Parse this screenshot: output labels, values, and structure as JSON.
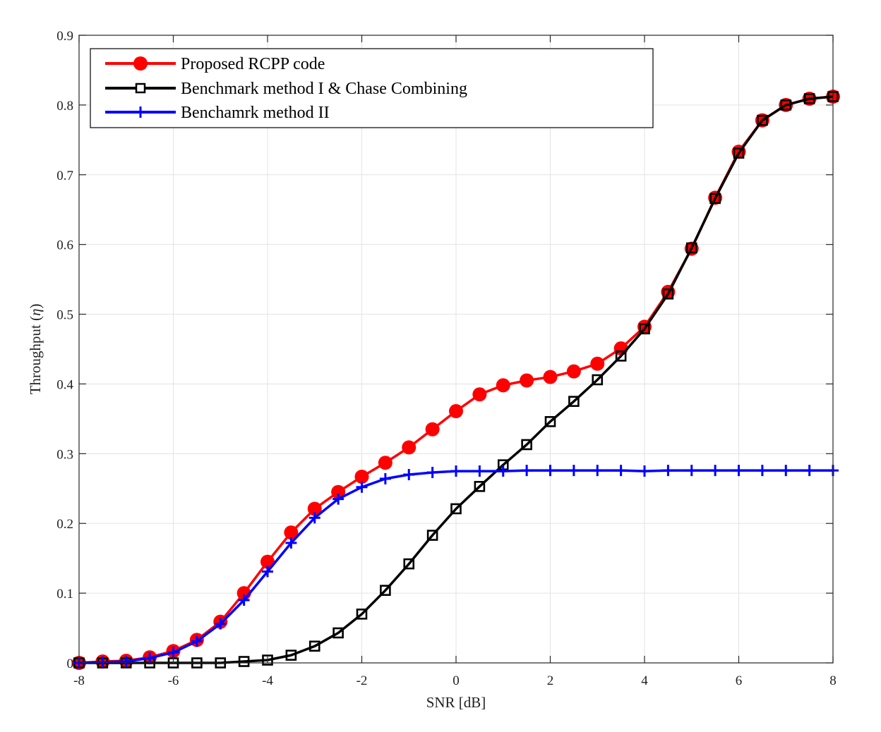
{
  "chart_data": {
    "type": "line",
    "xlabel": "SNR [dB]",
    "ylabel_main": "Throughput (",
    "ylabel_symbol": "η",
    "ylabel_close": ")",
    "xlim": [
      -8,
      8
    ],
    "ylim": [
      0,
      0.9
    ],
    "grid": true,
    "legend_position": "top-left",
    "xticks": [
      "-8",
      "-6",
      "-4",
      "-2",
      "0",
      "2",
      "4",
      "6",
      "8"
    ],
    "yticks": [
      "0",
      "0.1",
      "0.2",
      "0.3",
      "0.4",
      "0.5",
      "0.6",
      "0.7",
      "0.8",
      "0.9"
    ],
    "x": [
      -8,
      -7.5,
      -7,
      -6.5,
      -6,
      -5.5,
      -5,
      -4.5,
      -4,
      -3.5,
      -3,
      -2.5,
      -2,
      -1.5,
      -1,
      -0.5,
      0,
      0.5,
      1,
      1.5,
      2,
      2.5,
      3,
      3.5,
      4,
      4.5,
      5,
      5.5,
      6,
      6.5,
      7,
      7.5,
      8
    ],
    "series": [
      {
        "name": "Proposed RCPP code",
        "color": "#ff0000",
        "marker": "circle",
        "values": [
          0.0,
          0.002,
          0.003,
          0.008,
          0.017,
          0.033,
          0.059,
          0.1,
          0.145,
          0.187,
          0.221,
          0.245,
          0.267,
          0.287,
          0.309,
          0.335,
          0.361,
          0.385,
          0.398,
          0.405,
          0.41,
          0.418,
          0.429,
          0.451,
          0.482,
          0.532,
          0.594,
          0.667,
          0.733,
          0.778,
          0.8,
          0.809,
          0.812
        ]
      },
      {
        "name": "Benchmark method I & Chase Combining",
        "color": "#000000",
        "marker": "square",
        "values": [
          0.0,
          0.0,
          0.0,
          0.0,
          0.0,
          0.0,
          0.0,
          0.002,
          0.004,
          0.011,
          0.024,
          0.043,
          0.07,
          0.104,
          0.142,
          0.183,
          0.221,
          0.253,
          0.284,
          0.313,
          0.346,
          0.375,
          0.406,
          0.44,
          0.479,
          0.529,
          0.595,
          0.666,
          0.731,
          0.778,
          0.8,
          0.809,
          0.812
        ]
      },
      {
        "name": "Benchamrk method II",
        "color": "#0000ff",
        "marker": "plus",
        "values": [
          0.0,
          0.001,
          0.002,
          0.007,
          0.015,
          0.031,
          0.056,
          0.09,
          0.131,
          0.172,
          0.208,
          0.235,
          0.252,
          0.264,
          0.27,
          0.273,
          0.275,
          0.275,
          0.275,
          0.276,
          0.276,
          0.276,
          0.276,
          0.276,
          0.275,
          0.276,
          0.276,
          0.276,
          0.276,
          0.276,
          0.276,
          0.276,
          0.276
        ]
      }
    ]
  }
}
